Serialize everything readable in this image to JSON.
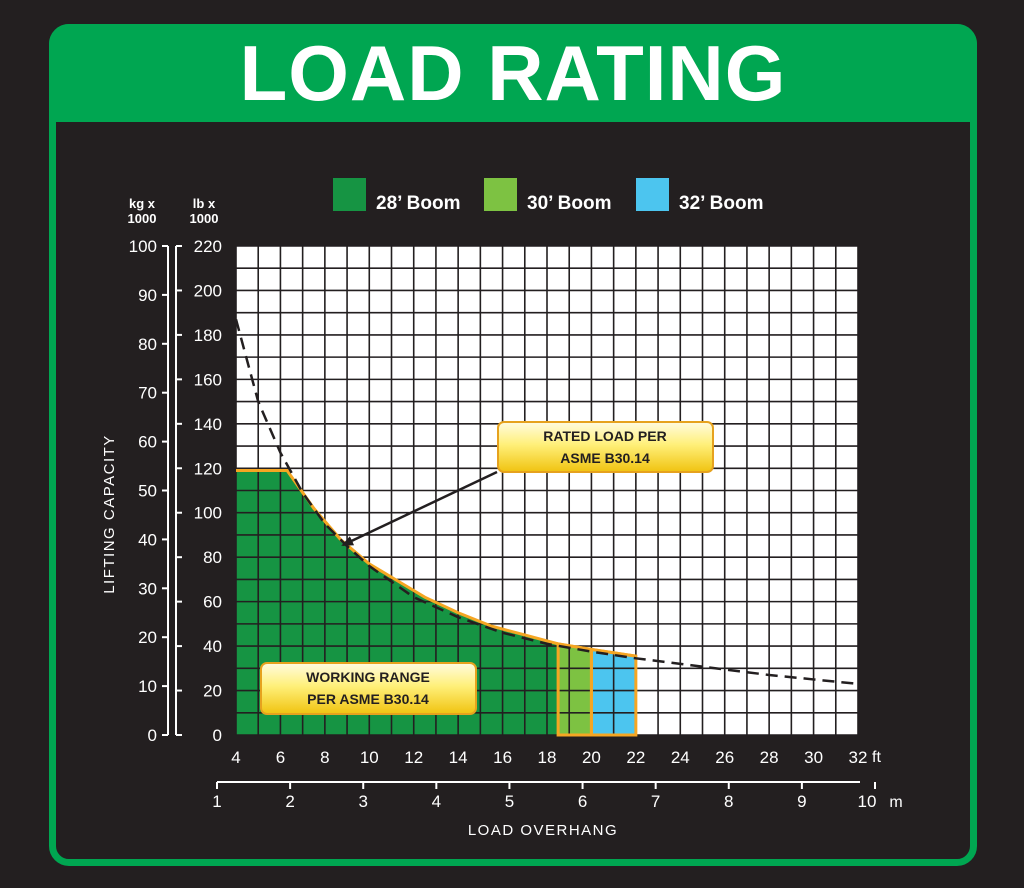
{
  "title": "LOAD RATING",
  "chart_data": {
    "type": "area",
    "legend": {
      "placement": "top",
      "items": [
        {
          "label": "28’ Boom",
          "color": "#169443"
        },
        {
          "label": "30’ Boom",
          "color": "#7dc242"
        },
        {
          "label": "32’ Boom",
          "color": "#4cc5ef"
        }
      ]
    },
    "y_axis": {
      "label": "LIFTING CAPACITY",
      "kg_header": [
        "kg  x",
        "1000"
      ],
      "lb_header": [
        "lb  x",
        "1000"
      ],
      "kg_ticks": [
        0,
        10,
        20,
        30,
        40,
        50,
        60,
        70,
        80,
        90,
        100
      ],
      "lb_ticks": [
        0,
        20,
        40,
        60,
        80,
        100,
        120,
        140,
        160,
        180,
        200,
        220
      ],
      "lb_range": [
        0,
        220
      ],
      "kg_range": [
        0,
        100
      ]
    },
    "x_axis": {
      "label": "LOAD OVERHANG",
      "ft_unit": "ft",
      "m_unit": "m",
      "ft_ticks": [
        4,
        6,
        8,
        10,
        12,
        14,
        16,
        18,
        20,
        22,
        24,
        26,
        28,
        30,
        32
      ],
      "m_ticks": [
        1,
        2,
        3,
        4,
        5,
        6,
        7,
        8,
        9,
        10
      ],
      "ft_range": [
        4,
        32
      ]
    },
    "grid": true,
    "series": [
      {
        "name": "28’ Boom",
        "x_ft": [
          4,
          6.3,
          7.5,
          8.7,
          10,
          11.5,
          12.5,
          14,
          15.5,
          17,
          18.5
        ],
        "y_lb": [
          119,
          119,
          102,
          88,
          77,
          68,
          62,
          55,
          49,
          45,
          41
        ]
      },
      {
        "name": "30’ Boom",
        "x_ft": [
          18.5,
          20
        ],
        "y_lb": [
          41,
          38.5
        ]
      },
      {
        "name": "32’ Boom",
        "x_ft": [
          20,
          22
        ],
        "y_lb": [
          38.5,
          35.5
        ]
      }
    ],
    "rated_load_curve": {
      "x_ft": [
        4,
        5,
        6,
        7,
        8,
        9,
        10,
        12,
        14,
        16,
        18,
        20,
        22,
        24,
        26,
        28,
        30,
        32
      ],
      "y_lb": [
        187,
        150,
        127,
        109,
        95,
        85,
        76,
        62,
        53,
        46,
        41,
        37.5,
        34.5,
        32,
        29.5,
        27,
        25,
        23
      ]
    },
    "annotations": [
      {
        "name": "rated-load",
        "lines": [
          "RATED LOAD PER",
          "ASME B30.14"
        ]
      },
      {
        "name": "working-range",
        "lines": [
          "WORKING RANGE",
          "PER ASME B30.14"
        ]
      }
    ]
  }
}
